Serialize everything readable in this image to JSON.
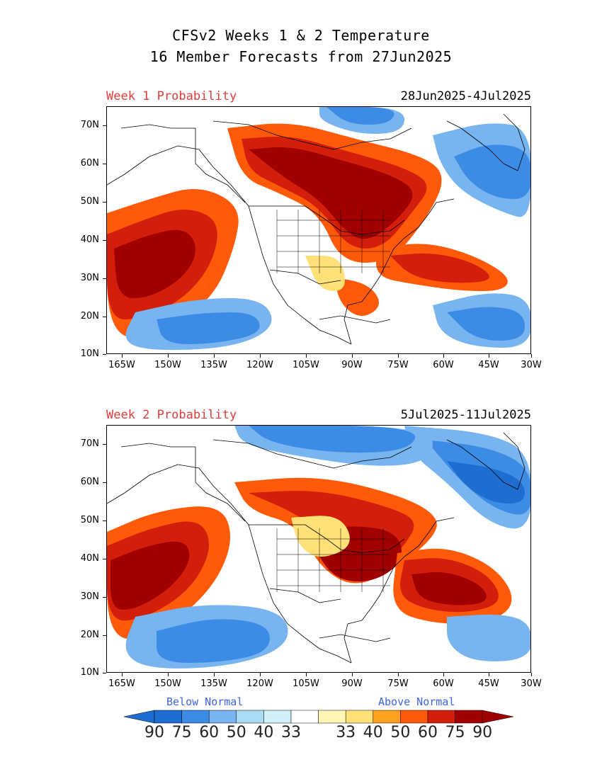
{
  "title_line1": "CFSv2 Weeks 1 & 2 Temperature",
  "title_line2": "16 Member Forecasts from 27Jun2025",
  "panels": [
    {
      "label": "Week 1 Probability",
      "dates": "28Jun2025-4Jul2025"
    },
    {
      "label": "Week 2 Probability",
      "dates": "5Jul2025-11Jul2025"
    }
  ],
  "lat_labels": [
    "70N",
    "60N",
    "50N",
    "40N",
    "30N",
    "20N",
    "10N"
  ],
  "lon_labels": [
    "165W",
    "150W",
    "135W",
    "120W",
    "105W",
    "90W",
    "75W",
    "60W",
    "45W",
    "30W"
  ],
  "legend": {
    "below_label": "Below Normal",
    "above_label": "Above Normal",
    "below_values": [
      "90",
      "75",
      "60",
      "50",
      "40",
      "33"
    ],
    "above_values": [
      "33",
      "40",
      "50",
      "60",
      "75",
      "90"
    ],
    "below_colors": [
      "#1e6ed2",
      "#3c8ce6",
      "#78b4f0",
      "#aadcf5",
      "#d2f0fa",
      "#ffffff"
    ],
    "above_colors": [
      "#fff5b4",
      "#ffe178",
      "#ffa01e",
      "#ff5a0a",
      "#d21e0a",
      "#a00000"
    ]
  }
}
